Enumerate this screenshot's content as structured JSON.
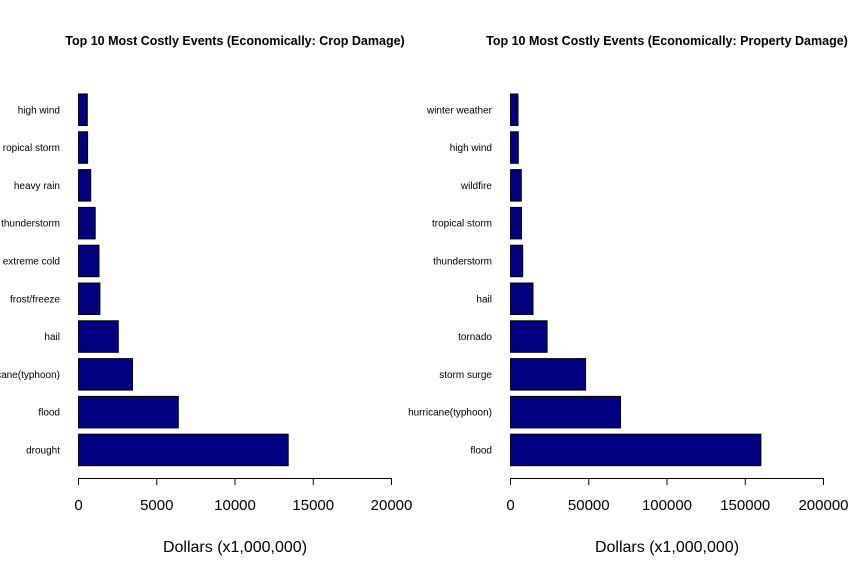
{
  "colors": {
    "bar_fill": "#000080",
    "bar_stroke": "#000000",
    "background": "#ffffff"
  },
  "chart_data": [
    {
      "type": "bar",
      "orientation": "horizontal",
      "title": "Top 10 Most Costly Events (Economically: Crop Damage)",
      "xlabel": "Dollars (x1,000,000)",
      "ylabel": "",
      "categories": [
        "drought",
        "flood",
        "hurricane(typhoon)",
        "hail",
        "frost/freeze",
        "extreme cold",
        "thunderstorm",
        "heavy rain",
        "tropical storm",
        "high wind"
      ],
      "category_display": [
        "drought",
        "flood",
        "cane(typhoon)",
        "hail",
        "frost/freeze",
        "extreme cold",
        "thunderstorm",
        "heavy rain",
        "ropical storm",
        "high wind"
      ],
      "values": [
        13400,
        6380,
        3450,
        2540,
        1370,
        1310,
        1070,
        780,
        580,
        560
      ],
      "xlim": [
        0,
        20000
      ],
      "xticks": [
        0,
        5000,
        10000,
        15000,
        20000
      ],
      "xtick_labels": [
        "0",
        "5000",
        "10000",
        "15000",
        "20000"
      ],
      "grid": false,
      "legend": "none"
    },
    {
      "type": "bar",
      "orientation": "horizontal",
      "title": "Top 10 Most Costly Events (Economically: Property Damage)",
      "xlabel": "Dollars (x1,000,000)",
      "ylabel": "",
      "categories": [
        "flood",
        "hurricane(typhoon)",
        "storm surge",
        "tornado",
        "hail",
        "thunderstorm",
        "tropical storm",
        "wildfire",
        "high wind",
        "winter weather"
      ],
      "category_display": [
        "flood",
        "hurricane(typhoon)",
        "storm surge",
        "tornado",
        "hail",
        "thunderstorm",
        "tropical storm",
        "wildfire",
        "high wind",
        "winter weather"
      ],
      "values": [
        160000,
        70300,
        48000,
        23400,
        14400,
        7800,
        7000,
        6900,
        5000,
        4800
      ],
      "xlim": [
        0,
        200000
      ],
      "xticks": [
        0,
        50000,
        100000,
        150000,
        200000
      ],
      "xtick_labels": [
        "0",
        "50000",
        "100000",
        "150000",
        "200000"
      ],
      "grid": false,
      "legend": "none"
    }
  ]
}
